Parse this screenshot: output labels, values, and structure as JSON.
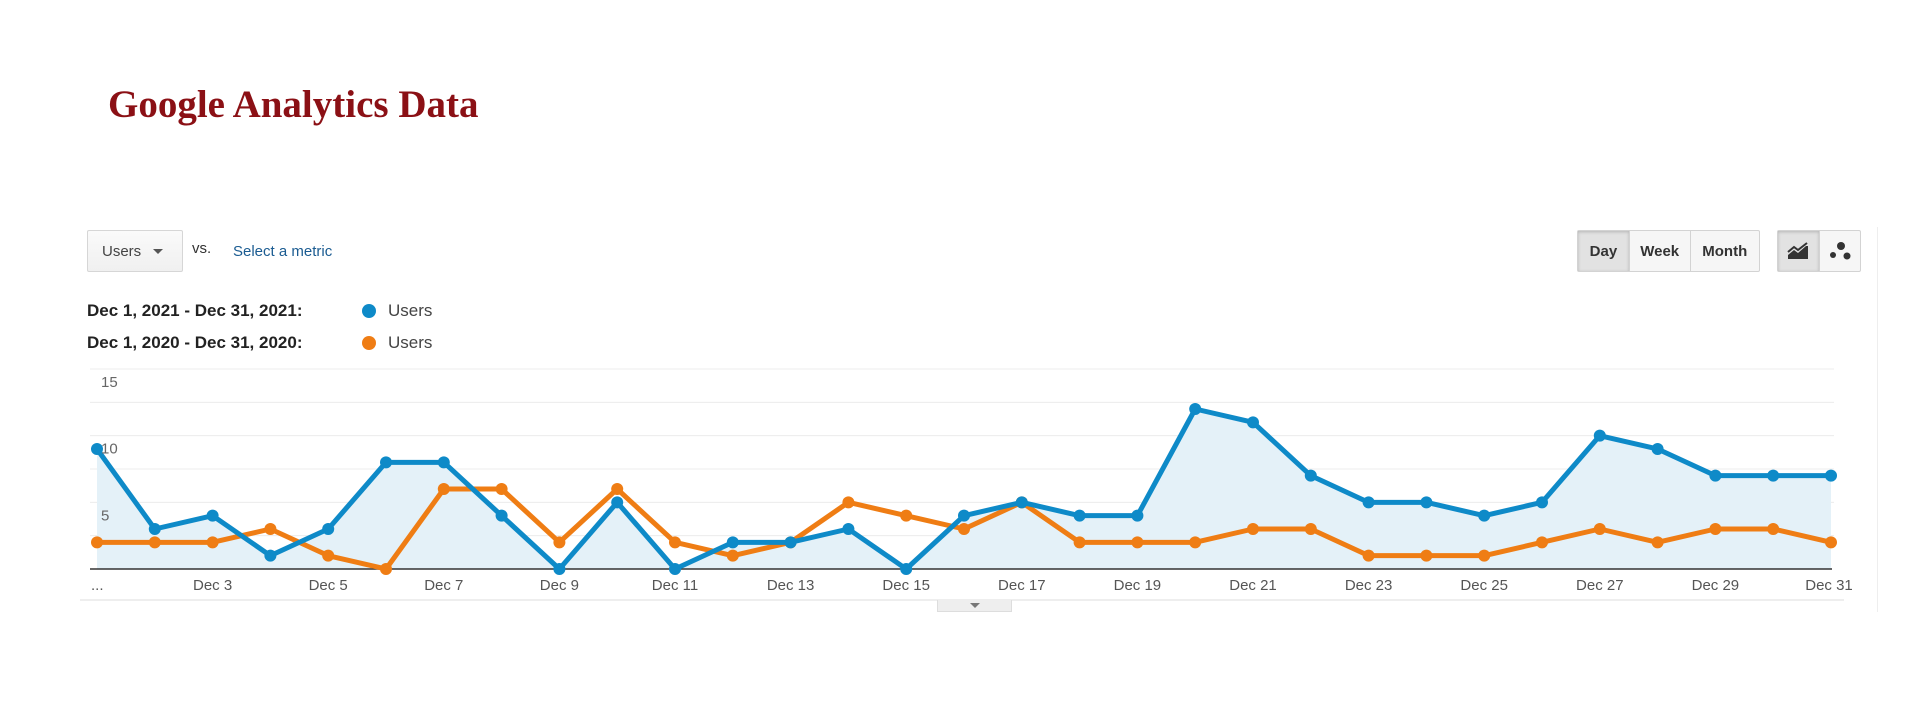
{
  "page": {
    "title": "Google Analytics Data"
  },
  "controls": {
    "metric_dropdown": "Users",
    "vs_label": "vs.",
    "select_metric": "Select a metric",
    "granularity": [
      {
        "label": "Day",
        "active": true
      },
      {
        "label": "Week",
        "active": false
      },
      {
        "label": "Month",
        "active": false
      }
    ],
    "chart_types": [
      {
        "icon": "line-chart-icon",
        "active": true
      },
      {
        "icon": "motion-chart-icon",
        "active": false
      }
    ]
  },
  "chart_data": {
    "type": "line",
    "title": "",
    "xlabel": "",
    "ylabel": "",
    "ylim": [
      0,
      15
    ],
    "yticks": [
      15,
      10,
      5
    ],
    "grid": true,
    "legend": "top-left",
    "x": [
      "Dec 1",
      "Dec 2",
      "Dec 3",
      "Dec 4",
      "Dec 5",
      "Dec 6",
      "Dec 7",
      "Dec 8",
      "Dec 9",
      "Dec 10",
      "Dec 11",
      "Dec 12",
      "Dec 13",
      "Dec 14",
      "Dec 15",
      "Dec 16",
      "Dec 17",
      "Dec 18",
      "Dec 19",
      "Dec 20",
      "Dec 21",
      "Dec 22",
      "Dec 23",
      "Dec 24",
      "Dec 25",
      "Dec 26",
      "Dec 27",
      "Dec 28",
      "Dec 29",
      "Dec 30",
      "Dec 31"
    ],
    "xtick_labels": [
      "...",
      "Dec 3",
      "Dec 5",
      "Dec 7",
      "Dec 9",
      "Dec 11",
      "Dec 13",
      "Dec 15",
      "Dec 17",
      "Dec 19",
      "Dec 21",
      "Dec 23",
      "Dec 25",
      "Dec 27",
      "Dec 29",
      "Dec 31"
    ],
    "series": [
      {
        "name": "Users",
        "range": "Dec 1, 2021 - Dec 31, 2021:",
        "color": "#0e8ac8",
        "area": true,
        "values": [
          9,
          3,
          4,
          1,
          3,
          8,
          8,
          4,
          0,
          5,
          0,
          2,
          2,
          3,
          0,
          4,
          5,
          4,
          4,
          12,
          11,
          7,
          5,
          5,
          4,
          5,
          10,
          9,
          7,
          7,
          7
        ]
      },
      {
        "name": "Users",
        "range": "Dec 1, 2020 - Dec 31, 2020:",
        "color": "#ef7d14",
        "area": false,
        "values": [
          2,
          2,
          2,
          3,
          1,
          0,
          6,
          6,
          2,
          6,
          2,
          1,
          2,
          5,
          4,
          3,
          5,
          2,
          2,
          2,
          3,
          3,
          1,
          1,
          1,
          2,
          3,
          2,
          3,
          3,
          2
        ]
      }
    ]
  }
}
